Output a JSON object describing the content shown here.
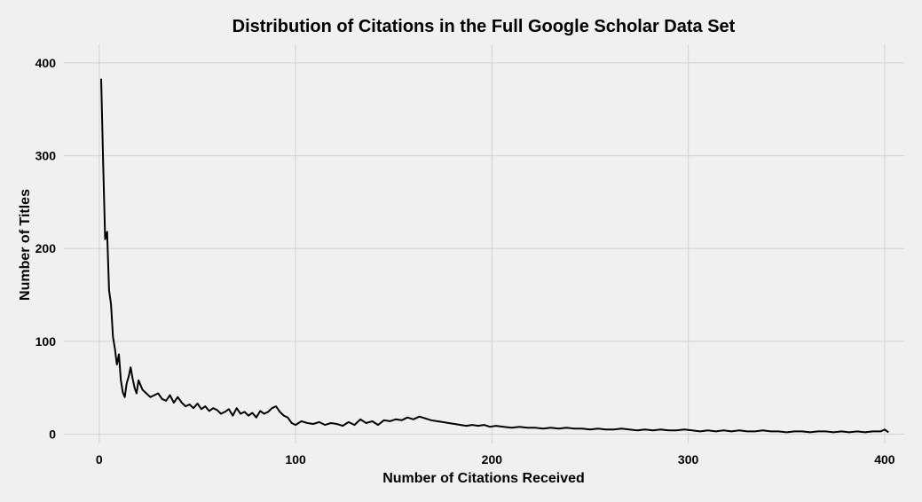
{
  "chart_data": {
    "type": "line",
    "title": "Distribution of Citations in the Full Google Scholar Data Set",
    "xlabel": "Number of Citations Received",
    "ylabel": "Number of Titles",
    "xlim": [
      -18,
      410
    ],
    "ylim": [
      -10,
      420
    ],
    "xticks": [
      0,
      100,
      200,
      300,
      400
    ],
    "yticks": [
      0,
      100,
      200,
      300,
      400
    ],
    "grid": true,
    "line_color": "#000000",
    "series": [
      {
        "x": [
          1,
          2,
          3,
          4,
          5,
          6,
          7,
          8,
          9,
          10,
          11,
          12,
          13,
          14,
          15,
          16,
          17,
          18,
          19,
          20,
          22,
          24,
          26,
          28,
          30,
          32,
          34,
          36,
          38,
          40,
          42,
          44,
          46,
          48,
          50,
          52,
          54,
          56,
          58,
          60,
          62,
          64,
          66,
          68,
          70,
          72,
          74,
          76,
          78,
          80,
          82,
          84,
          86,
          88,
          90,
          92,
          94,
          96,
          98,
          100,
          103,
          106,
          109,
          112,
          115,
          118,
          121,
          124,
          127,
          130,
          133,
          136,
          139,
          142,
          145,
          148,
          151,
          154,
          157,
          160,
          163,
          166,
          169,
          172,
          175,
          178,
          181,
          184,
          187,
          190,
          193,
          196,
          199,
          202,
          206,
          210,
          214,
          218,
          222,
          226,
          230,
          234,
          238,
          242,
          246,
          250,
          254,
          258,
          262,
          266,
          270,
          274,
          278,
          282,
          286,
          290,
          294,
          298,
          302,
          306,
          310,
          314,
          318,
          322,
          326,
          330,
          334,
          338,
          342,
          346,
          350,
          354,
          358,
          362,
          366,
          370,
          374,
          378,
          382,
          386,
          390,
          394,
          398,
          400,
          402
        ],
        "y": [
          383,
          290,
          210,
          218,
          155,
          140,
          105,
          92,
          75,
          86,
          58,
          45,
          40,
          55,
          62,
          72,
          60,
          50,
          44,
          58,
          48,
          44,
          40,
          42,
          44,
          38,
          36,
          42,
          34,
          40,
          34,
          30,
          32,
          28,
          33,
          27,
          30,
          25,
          28,
          26,
          22,
          24,
          27,
          20,
          28,
          22,
          24,
          20,
          23,
          18,
          25,
          22,
          24,
          28,
          30,
          24,
          20,
          18,
          12,
          10,
          14,
          12,
          11,
          13,
          10,
          12,
          11,
          9,
          13,
          10,
          16,
          12,
          14,
          10,
          15,
          14,
          16,
          15,
          18,
          16,
          19,
          17,
          15,
          14,
          13,
          12,
          11,
          10,
          9,
          10,
          9,
          10,
          8,
          9,
          8,
          7,
          8,
          7,
          7,
          6,
          7,
          6,
          7,
          6,
          6,
          5,
          6,
          5,
          5,
          6,
          5,
          4,
          5,
          4,
          5,
          4,
          4,
          5,
          4,
          3,
          4,
          3,
          4,
          3,
          4,
          3,
          3,
          4,
          3,
          3,
          2,
          3,
          3,
          2,
          3,
          3,
          2,
          3,
          2,
          3,
          2,
          3,
          3,
          5,
          2
        ]
      }
    ]
  }
}
